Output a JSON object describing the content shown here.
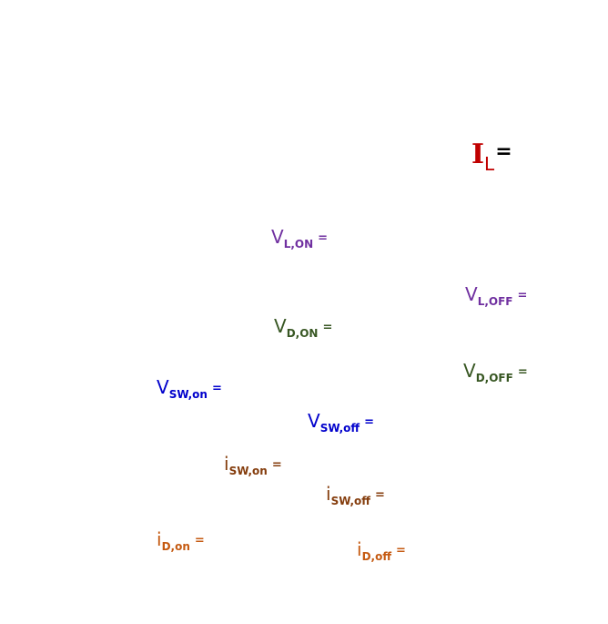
{
  "colors": {
    "inductor_current": "#c00000",
    "inductor_voltage": "#7030a0",
    "diode_voltage": "#385723",
    "switch_voltage": "#0000cc",
    "switch_current": "#843c0c",
    "diode_current": "#c55a11"
  },
  "labels": {
    "il": {
      "main": "I",
      "sub": "L",
      "eq": "="
    },
    "vl_on": {
      "main": "V",
      "sub": "L,ON",
      "eq": "="
    },
    "vl_off": {
      "main": "V",
      "sub": "L,OFF",
      "eq": "="
    },
    "vd_on": {
      "main": "V",
      "sub": "D,ON",
      "eq": "="
    },
    "vd_off": {
      "main": "V",
      "sub": "D,OFF",
      "eq": "="
    },
    "vsw_on": {
      "main": "V",
      "sub": "SW,on",
      "eq": "="
    },
    "vsw_off": {
      "main": "V",
      "sub": "SW,off",
      "eq": "="
    },
    "isw_on": {
      "main": "i",
      "sub": "SW,on",
      "eq": "="
    },
    "isw_off": {
      "main": "i",
      "sub": "SW,off",
      "eq": "="
    },
    "id_on": {
      "main": "i",
      "sub": "D,on",
      "eq": "="
    },
    "id_off": {
      "main": "i",
      "sub": "D,off",
      "eq": "="
    }
  }
}
